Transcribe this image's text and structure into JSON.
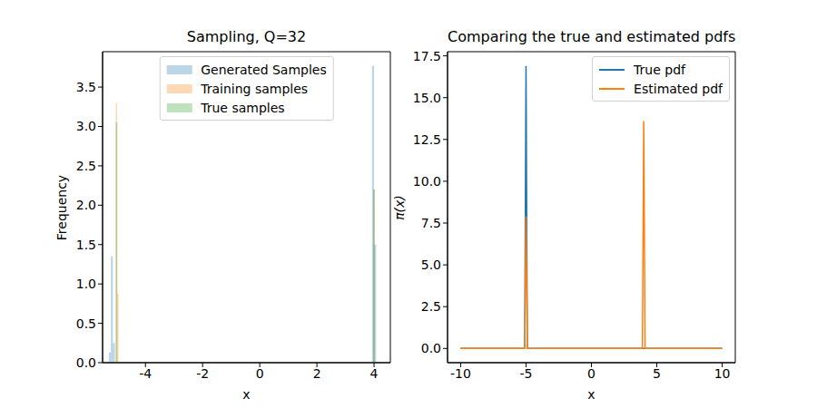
{
  "chart_data": [
    {
      "type": "histogram",
      "title": "Sampling, Q=32",
      "x_label": "x",
      "y_label": "Frequency",
      "xlim": [
        -5.5,
        4.57
      ],
      "xticks": [
        -4,
        -2,
        0,
        2,
        4
      ],
      "ylim": [
        0,
        3.95
      ],
      "yticks": [
        {
          "value": 0,
          "label": "0.0"
        },
        0.5,
        {
          "value": 1,
          "label": "1.0"
        },
        1.5,
        {
          "value": 2,
          "label": "2.0"
        },
        2.5,
        {
          "value": 3,
          "label": "3.0"
        },
        3.5
      ],
      "legend": "upper center",
      "series": [
        {
          "name": "Generated Samples",
          "color": "#1f77b4",
          "bins": [
            -5.28,
            -5.21,
            -5.14,
            -5.07,
            3.93,
            4.0,
            4.07
          ],
          "values": [
            0.13,
            1.35,
            0.25,
            0,
            3.77,
            1.5
          ]
        },
        {
          "name": "Training samples",
          "color": "#ff7f0e",
          "bins": [
            -5.04,
            -4.99,
            -4.94,
            3.97,
            4.02
          ],
          "values": [
            3.3,
            0.88,
            0,
            2.2
          ]
        },
        {
          "name": "True samples",
          "color": "#2ca02c",
          "bins": [
            -5.04,
            -4.98,
            3.97,
            4.03
          ],
          "values": [
            3.05,
            0,
            2.2
          ]
        }
      ]
    },
    {
      "type": "line",
      "title": "Comparing the true and estimated pdfs",
      "x_label": "x",
      "y_label": "π(x)",
      "x": [
        -10,
        -5.1,
        -5.0,
        -4.9,
        3.9,
        4.0,
        4.1,
        10
      ],
      "xlim": [
        -11,
        11
      ],
      "xticks": [
        -10,
        -5,
        0,
        5,
        10
      ],
      "ylim": [
        -0.85,
        17.75
      ],
      "yticks": [
        {
          "value": 0,
          "label": "0.0"
        },
        2.5,
        {
          "value": 5,
          "label": "5.0"
        },
        7.5,
        {
          "value": 10,
          "label": "10.0"
        },
        12.5,
        {
          "value": 15,
          "label": "15.0"
        },
        17.5
      ],
      "legend": "upper right",
      "series": [
        {
          "name": "True pdf",
          "color": "#1f77b4",
          "values": [
            0,
            0,
            16.9,
            0,
            0,
            0,
            0,
            0
          ]
        },
        {
          "name": "Estimated pdf",
          "color": "#ff7f0e",
          "values": [
            0,
            0,
            7.9,
            0,
            0,
            13.6,
            0,
            0
          ]
        }
      ]
    }
  ]
}
